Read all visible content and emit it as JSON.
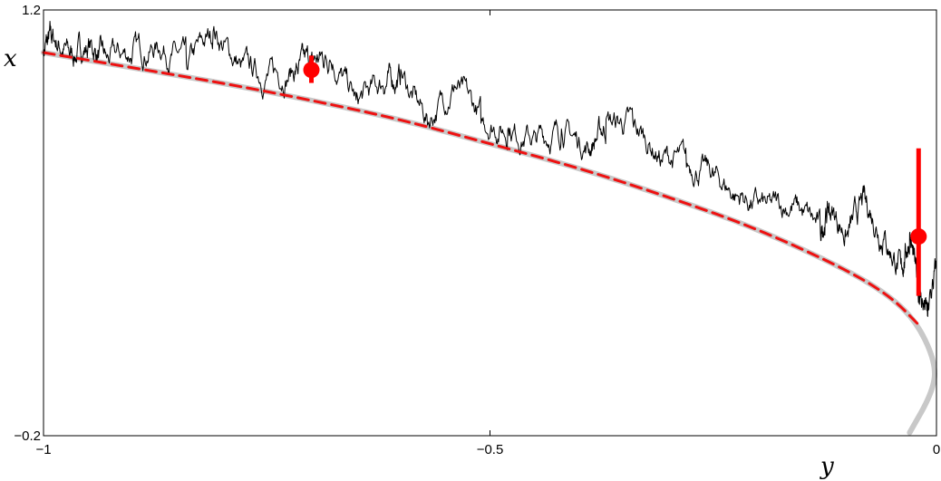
{
  "chart_data": {
    "type": "line",
    "title": "",
    "xlabel": "y",
    "ylabel": "x",
    "xlim": [
      -1,
      0
    ],
    "ylim": [
      -0.2,
      1.2
    ],
    "x_ticks": [
      -1,
      -0.5,
      0
    ],
    "x_tick_labels": [
      "−1",
      "−0.5",
      "0"
    ],
    "y_ticks": [
      -0.2,
      1.2
    ],
    "y_tick_labels": [
      "−0.2",
      "1.2"
    ],
    "grid": false,
    "legend": "none",
    "colors": {
      "sample_path": "#000000",
      "curve": "#c8c8c8",
      "dashed_curve": "#ee1111",
      "markers": "#ff0000"
    },
    "series": [
      {
        "kind": "curve",
        "style": "solid-thick-gray",
        "x": [
          -1.0,
          -0.9,
          -0.8,
          -0.7,
          -0.6,
          -0.5,
          -0.4,
          -0.3,
          -0.2,
          -0.1,
          -0.05,
          -0.02,
          0.0,
          -0.005,
          -0.03
        ],
        "y": [
          1.06,
          1.01,
          0.96,
          0.903,
          0.84,
          0.76,
          0.68,
          0.585,
          0.48,
          0.345,
          0.255,
          0.165,
          0.03,
          -0.06,
          -0.19
        ]
      },
      {
        "kind": "curve",
        "style": "dashed-red",
        "x": [
          -1.0,
          -0.9,
          -0.8,
          -0.7,
          -0.6,
          -0.5,
          -0.4,
          -0.3,
          -0.2,
          -0.1,
          -0.05,
          -0.02
        ],
        "y": [
          1.06,
          1.01,
          0.96,
          0.903,
          0.84,
          0.76,
          0.68,
          0.585,
          0.48,
          0.345,
          0.255,
          0.165
        ]
      },
      {
        "kind": "sample-path",
        "style": "thin-black",
        "x": [
          -1.0,
          -0.99,
          -0.97,
          -0.95,
          -0.93,
          -0.9,
          -0.87,
          -0.84,
          -0.81,
          -0.78,
          -0.75,
          -0.72,
          -0.7,
          -0.68,
          -0.65,
          -0.62,
          -0.6,
          -0.57,
          -0.54,
          -0.51,
          -0.48,
          -0.45,
          -0.42,
          -0.39,
          -0.37,
          -0.34,
          -0.31,
          -0.28,
          -0.25,
          -0.22,
          -0.19,
          -0.16,
          -0.13,
          -0.12,
          -0.1,
          -0.08,
          -0.06,
          -0.04,
          -0.03,
          -0.02,
          -0.01,
          0.0
        ],
        "y": [
          1.07,
          1.11,
          1.05,
          1.08,
          1.04,
          1.06,
          1.08,
          1.03,
          1.12,
          1.02,
          0.98,
          1.0,
          1.03,
          1.05,
          0.9,
          0.96,
          0.98,
          0.84,
          0.95,
          0.85,
          0.8,
          0.78,
          0.8,
          0.75,
          0.82,
          0.83,
          0.72,
          0.7,
          0.66,
          0.58,
          0.55,
          0.56,
          0.48,
          0.55,
          0.46,
          0.58,
          0.45,
          0.35,
          0.45,
          0.27,
          0.2,
          0.35
        ]
      }
    ],
    "markers": [
      {
        "x": -0.7,
        "y": 1.003,
        "err_low": 0.96,
        "err_high": 1.05
      },
      {
        "x": -0.02,
        "y": 0.455,
        "err_low": 0.26,
        "err_high": 0.745
      }
    ]
  }
}
